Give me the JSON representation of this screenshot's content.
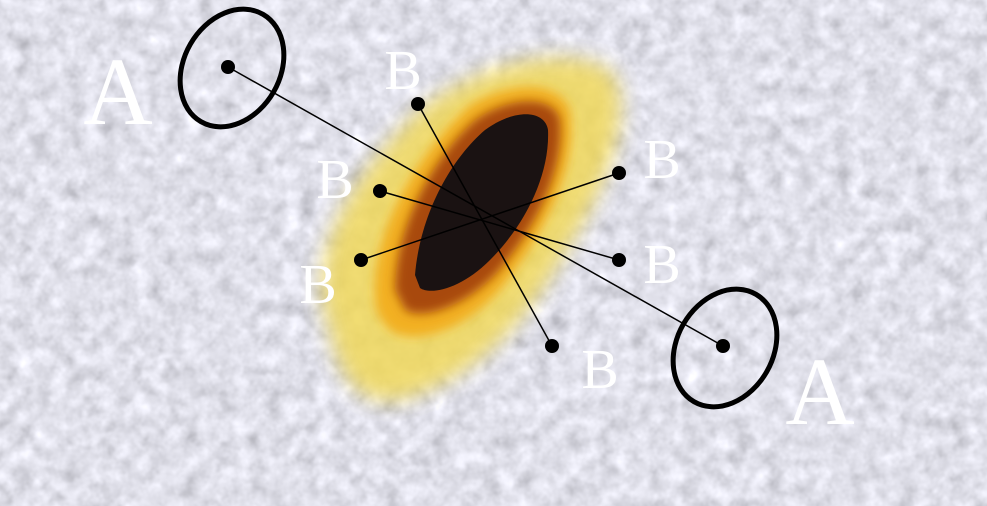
{
  "labels": [
    "A",
    "A",
    "B",
    "B",
    "B",
    "B",
    "B",
    "B"
  ]
}
